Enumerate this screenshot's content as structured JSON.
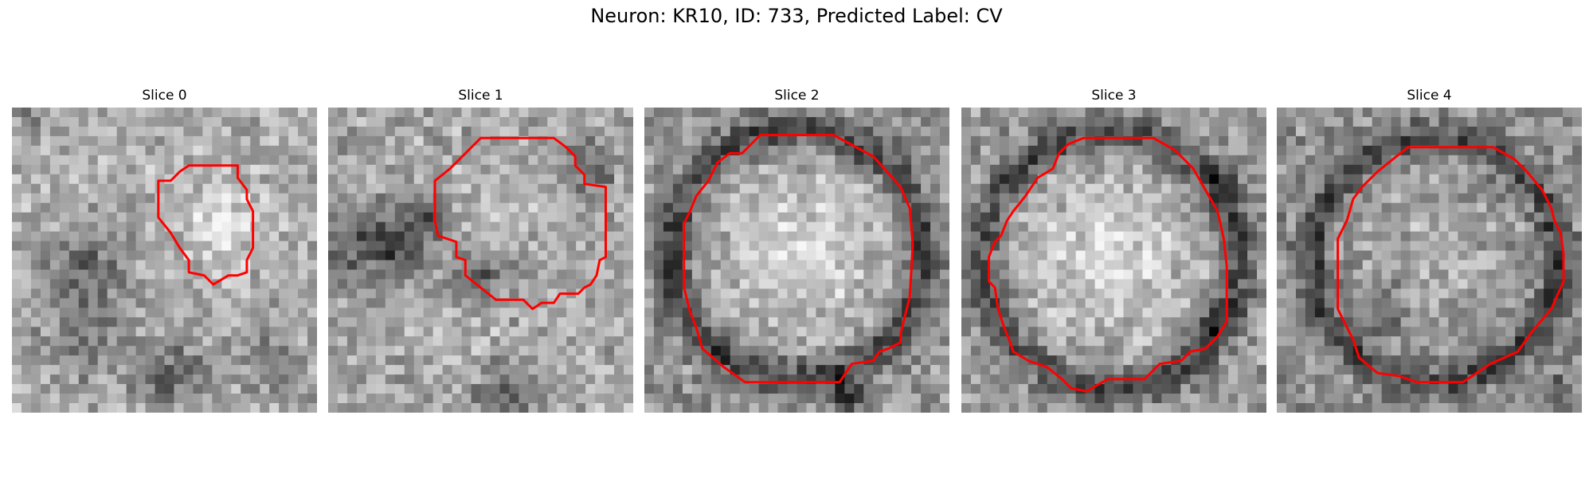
{
  "figure": {
    "suptitle": "Neuron: KR10, ID: 733, Predicted Label: CV",
    "contour_color": "#ff0000",
    "colormap": "grayscale",
    "panels": [
      {
        "title": "Slice 0"
      },
      {
        "title": "Slice 1"
      },
      {
        "title": "Slice 2"
      },
      {
        "title": "Slice 3"
      },
      {
        "title": "Slice 4"
      }
    ]
  }
}
